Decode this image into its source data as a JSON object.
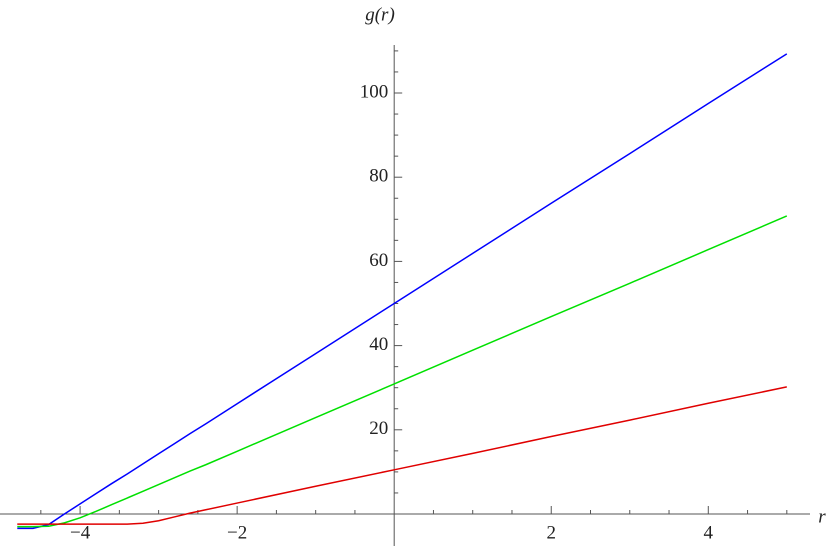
{
  "chart_data": {
    "type": "line",
    "x_label": "r",
    "y_label": "g(r)",
    "x": [
      -4.8,
      -4.6,
      -4.4,
      -4.2,
      -4,
      -3.8,
      -3.6,
      -3.4,
      -3.2,
      -3,
      -2.8,
      -2.6,
      -2.4,
      -2,
      -1,
      0,
      1,
      2,
      3,
      4,
      5
    ],
    "series": [
      {
        "color": "#0000ff",
        "values": [
          -3.4,
          -3.4,
          -2.5,
          0,
          2.4,
          4.8,
          7.2,
          9.5,
          11.9,
          14.3,
          16.7,
          19.1,
          21.4,
          26.2,
          38.1,
          50,
          61.9,
          73.8,
          85.6,
          97.5,
          109.3
        ]
      },
      {
        "color": "#00e000",
        "values": [
          -3,
          -3,
          -2.9,
          -2.1,
          -0.9,
          0.6,
          2.2,
          3.8,
          5.4,
          7,
          8.6,
          10.2,
          11.7,
          14.9,
          22.9,
          30.9,
          38.9,
          46.9,
          54.8,
          62.8,
          70.8
        ]
      },
      {
        "color": "#e00000",
        "values": [
          -2.4,
          -2.4,
          -2.4,
          -2.4,
          -2.4,
          -2.4,
          -2.4,
          -2.4,
          -2.2,
          -1.6,
          -0.7,
          0.2,
          1.0,
          2.6,
          6.6,
          10.5,
          14.4,
          18.4,
          22.3,
          26.3,
          30.2
        ]
      }
    ],
    "xlim": [
      -5.02,
      5.55
    ],
    "ylim": [
      -7.6,
      111.4
    ],
    "xticks": [
      {
        "value": -4,
        "label": "−4"
      },
      {
        "value": -2,
        "label": "−2"
      },
      2,
      4
    ],
    "yticks": [
      20,
      40,
      60,
      80,
      100
    ],
    "xminorticks": [
      -4.5,
      -3.5,
      -3,
      -2.5,
      -1.5,
      -1,
      -0.5,
      0.5,
      1,
      1.5,
      2.5,
      3,
      3.5,
      4.5,
      5
    ],
    "yminorticks": [
      5,
      10,
      15,
      25,
      30,
      35,
      45,
      50,
      55,
      65,
      70,
      75,
      85,
      90,
      95,
      105,
      110
    ]
  }
}
